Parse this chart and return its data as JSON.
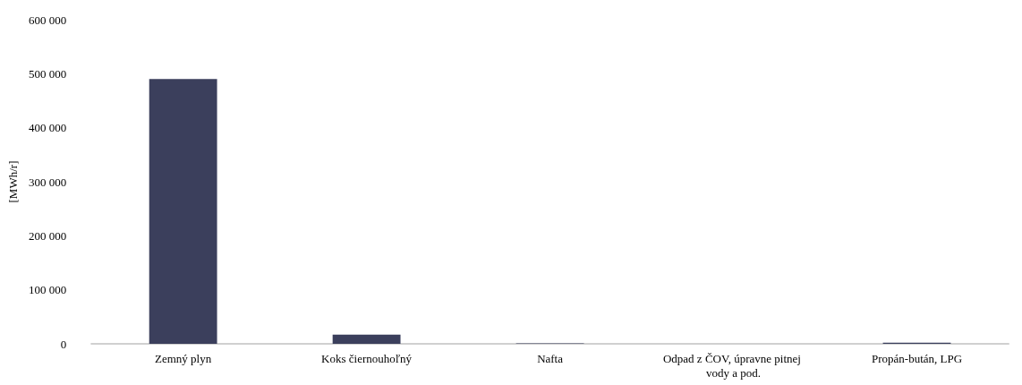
{
  "chart_data": {
    "type": "bar",
    "ylabel": "[MWh/r]",
    "categories": [
      "Zemný plyn",
      "Koks čiernouhoľný",
      "Nafta",
      "Odpad z ČOV, úpravne pitnej vody a pod.",
      "Propán-bután, LPG"
    ],
    "values": [
      490000,
      17000,
      1000,
      0,
      2000
    ],
    "color": "#3b3f5c",
    "ylim": [
      0,
      600000
    ],
    "yticks": [
      {
        "value": 0,
        "label": "0"
      },
      {
        "value": 100000,
        "label": "100 000"
      },
      {
        "value": 200000,
        "label": "200 000"
      },
      {
        "value": 300000,
        "label": "300 000"
      },
      {
        "value": 400000,
        "label": "400 000"
      },
      {
        "value": 500000,
        "label": "500 000"
      },
      {
        "value": 600000,
        "label": "600 000"
      }
    ],
    "grid": false
  }
}
